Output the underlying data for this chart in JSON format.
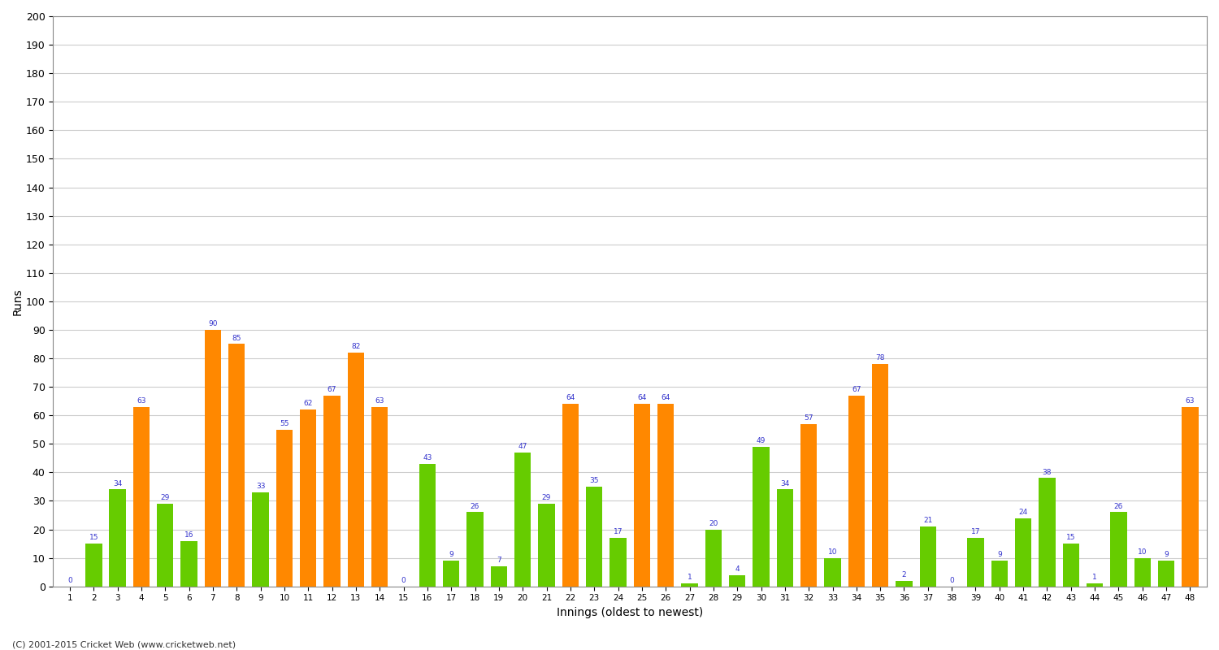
{
  "title": "",
  "xlabel": "Innings (oldest to newest)",
  "ylabel": "Runs",
  "ylim": [
    0,
    200
  ],
  "yticks": [
    0,
    10,
    20,
    30,
    40,
    50,
    60,
    70,
    80,
    90,
    100,
    110,
    120,
    130,
    140,
    150,
    160,
    170,
    180,
    190,
    200
  ],
  "innings": [
    1,
    2,
    3,
    4,
    5,
    6,
    7,
    8,
    9,
    10,
    11,
    12,
    13,
    14,
    15,
    16,
    17,
    18,
    19,
    20,
    21,
    22,
    23,
    24,
    25,
    26,
    27,
    28,
    29,
    30,
    31,
    32,
    33,
    34,
    35,
    36,
    37,
    38,
    39,
    40,
    41,
    42,
    43,
    44,
    45,
    46,
    47,
    48
  ],
  "values": [
    0,
    15,
    34,
    63,
    29,
    16,
    90,
    85,
    33,
    55,
    62,
    67,
    82,
    63,
    0,
    43,
    9,
    26,
    7,
    47,
    29,
    64,
    35,
    17,
    64,
    64,
    1,
    20,
    4,
    49,
    34,
    57,
    10,
    67,
    78,
    2,
    21,
    0,
    17,
    9,
    24,
    38,
    15,
    1,
    26,
    10,
    9,
    63
  ],
  "colors": [
    "#66cc00",
    "#66cc00",
    "#66cc00",
    "#ff8800",
    "#66cc00",
    "#66cc00",
    "#ff8800",
    "#ff8800",
    "#66cc00",
    "#ff8800",
    "#ff8800",
    "#ff8800",
    "#ff8800",
    "#ff8800",
    "#66cc00",
    "#66cc00",
    "#66cc00",
    "#66cc00",
    "#66cc00",
    "#66cc00",
    "#66cc00",
    "#ff8800",
    "#66cc00",
    "#66cc00",
    "#ff8800",
    "#ff8800",
    "#66cc00",
    "#66cc00",
    "#66cc00",
    "#66cc00",
    "#66cc00",
    "#ff8800",
    "#66cc00",
    "#ff8800",
    "#ff8800",
    "#66cc00",
    "#66cc00",
    "#66cc00",
    "#66cc00",
    "#66cc00",
    "#66cc00",
    "#66cc00",
    "#66cc00",
    "#66cc00",
    "#66cc00",
    "#66cc00",
    "#66cc00",
    "#ff8800"
  ],
  "value_color": "#3333cc",
  "bar_edge_color": "none",
  "background_color": "#ffffff",
  "grid_color": "#cccccc",
  "footer": "(C) 2001-2015 Cricket Web (www.cricketweb.net)"
}
